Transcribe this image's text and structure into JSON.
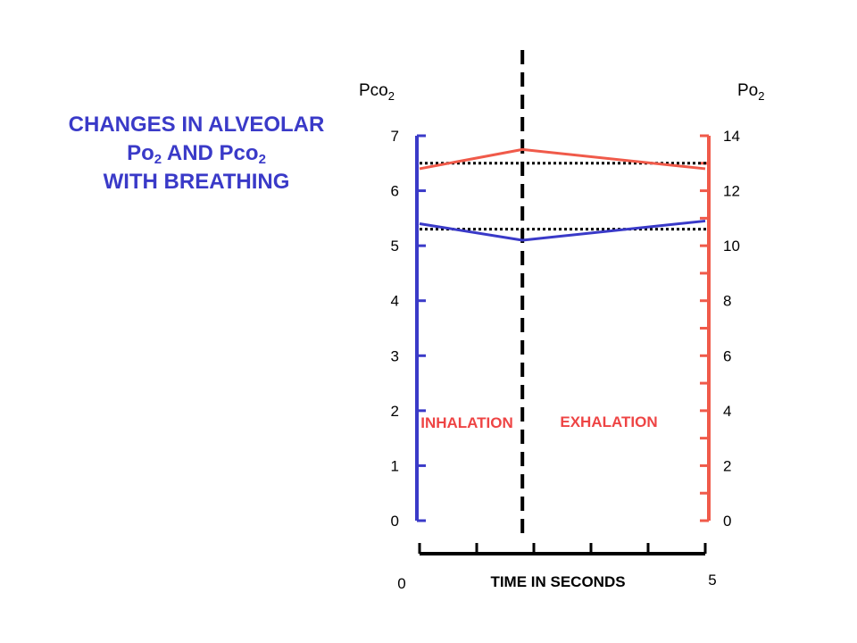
{
  "title": {
    "line1": "CHANGES IN ALVEOLAR",
    "line2_a": "Po",
    "line2_a_sub": "2",
    "line2_b": " AND Pco",
    "line2_b_sub": "2",
    "line3": "WITH BREATHING"
  },
  "colors": {
    "pco2": "#3a3ac8",
    "po2": "#f05a4a",
    "marker": "#000000"
  },
  "chart_data": {
    "type": "line",
    "left_axis": {
      "title_main": "Pco",
      "title_sub": "2",
      "range": [
        0,
        7
      ],
      "ticks": [
        0,
        1,
        2,
        3,
        4,
        5,
        6,
        7
      ],
      "tick_labels": [
        "0",
        "1",
        "2",
        "3",
        "4",
        "5",
        "6",
        "7"
      ]
    },
    "right_axis": {
      "title_main": "Po",
      "title_sub": "2",
      "range": [
        0,
        14
      ],
      "ticks": [
        0,
        2,
        4,
        6,
        8,
        10,
        12,
        14
      ],
      "tick_labels": [
        "0",
        "2",
        "4",
        "6",
        "8",
        "10",
        "12",
        "14"
      ],
      "minor_step": 1
    },
    "x_axis": {
      "label": "TIME IN SECONDS",
      "range": [
        0,
        5
      ],
      "tick_labels": [
        "0",
        "5"
      ],
      "ticks": [
        0,
        1,
        2,
        3,
        4,
        5
      ]
    },
    "series": [
      {
        "key": "po2",
        "axis": "right",
        "x": [
          0,
          1.8,
          5
        ],
        "y": [
          12.8,
          13.5,
          12.8
        ]
      },
      {
        "key": "pco2",
        "axis": "left",
        "x": [
          0,
          1.8,
          5
        ],
        "y": [
          5.4,
          5.1,
          5.45
        ]
      }
    ],
    "reference_lines": [
      {
        "axis": "right",
        "y": 13.0,
        "style": "dotted"
      },
      {
        "axis": "left",
        "y": 5.3,
        "style": "dotted"
      }
    ],
    "divider_x": 1.8,
    "phases": [
      "INHALATION",
      "EXHALATION"
    ]
  }
}
